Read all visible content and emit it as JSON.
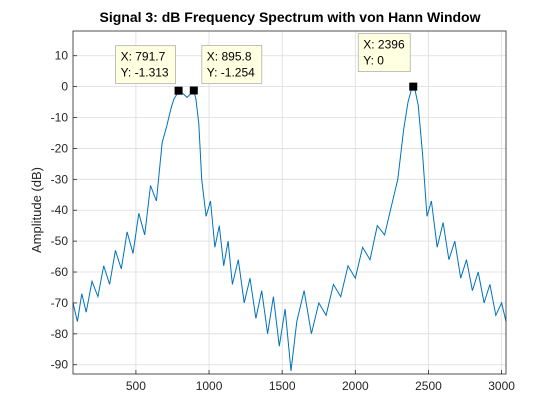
{
  "chart_data": {
    "type": "line",
    "title": "Signal 3: dB Frequency Spectrum with von Hann Window",
    "xlabel": "",
    "ylabel": "Amplitude (dB)",
    "xlim": [
      70,
      3030
    ],
    "ylim": [
      -93,
      18
    ],
    "xticks": [
      500,
      1000,
      1500,
      2000,
      2500,
      3000
    ],
    "yticks": [
      10,
      0,
      -10,
      -20,
      -30,
      -40,
      -50,
      -60,
      -70,
      -80,
      -90
    ],
    "grid": true,
    "line_color": "#0072bd",
    "x": [
      70,
      100,
      130,
      160,
      200,
      240,
      280,
      320,
      360,
      400,
      440,
      480,
      520,
      560,
      600,
      640,
      680,
      710,
      740,
      760,
      780,
      791.7,
      820,
      850,
      880,
      895.8,
      910,
      930,
      950,
      980,
      1010,
      1040,
      1070,
      1100,
      1130,
      1160,
      1200,
      1240,
      1280,
      1320,
      1360,
      1400,
      1440,
      1480,
      1520,
      1560,
      1600,
      1650,
      1700,
      1750,
      1800,
      1850,
      1900,
      1950,
      2000,
      2050,
      2100,
      2150,
      2200,
      2250,
      2290,
      2330,
      2360,
      2380,
      2396,
      2410,
      2430,
      2460,
      2490,
      2520,
      2560,
      2600,
      2640,
      2680,
      2720,
      2760,
      2800,
      2840,
      2880,
      2920,
      2960,
      3000,
      3030
    ],
    "y": [
      -70,
      -76,
      -67,
      -73,
      -63,
      -68,
      -58,
      -64,
      -53,
      -59,
      -47,
      -54,
      -41,
      -48,
      -32,
      -37,
      -18,
      -13,
      -7,
      -4,
      -2.5,
      -1.313,
      -2.2,
      -3.5,
      -2,
      -1.254,
      -4,
      -12,
      -30,
      -42,
      -37,
      -52,
      -45,
      -58,
      -50,
      -64,
      -56,
      -70,
      -62,
      -75,
      -66,
      -80,
      -68,
      -84,
      -72,
      -92,
      -76,
      -66,
      -80,
      -70,
      -74,
      -64,
      -68,
      -58,
      -62,
      -52,
      -56,
      -45,
      -48,
      -38,
      -30,
      -14,
      -5,
      -1.5,
      0,
      -1.5,
      -6,
      -22,
      -42,
      -37,
      -52,
      -44,
      -56,
      -50,
      -62,
      -56,
      -66,
      -60,
      -70,
      -64,
      -74,
      -70,
      -76
    ],
    "datatips": [
      {
        "x_label": "X: 791.7",
        "y_label": "Y: -1.313",
        "x": 791.7,
        "y": -1.313
      },
      {
        "x_label": "X: 895.8",
        "y_label": "Y: -1.254",
        "x": 895.8,
        "y": -1.254
      },
      {
        "x_label": "X: 2396",
        "y_label": "Y: 0",
        "x": 2396,
        "y": 0
      }
    ]
  }
}
